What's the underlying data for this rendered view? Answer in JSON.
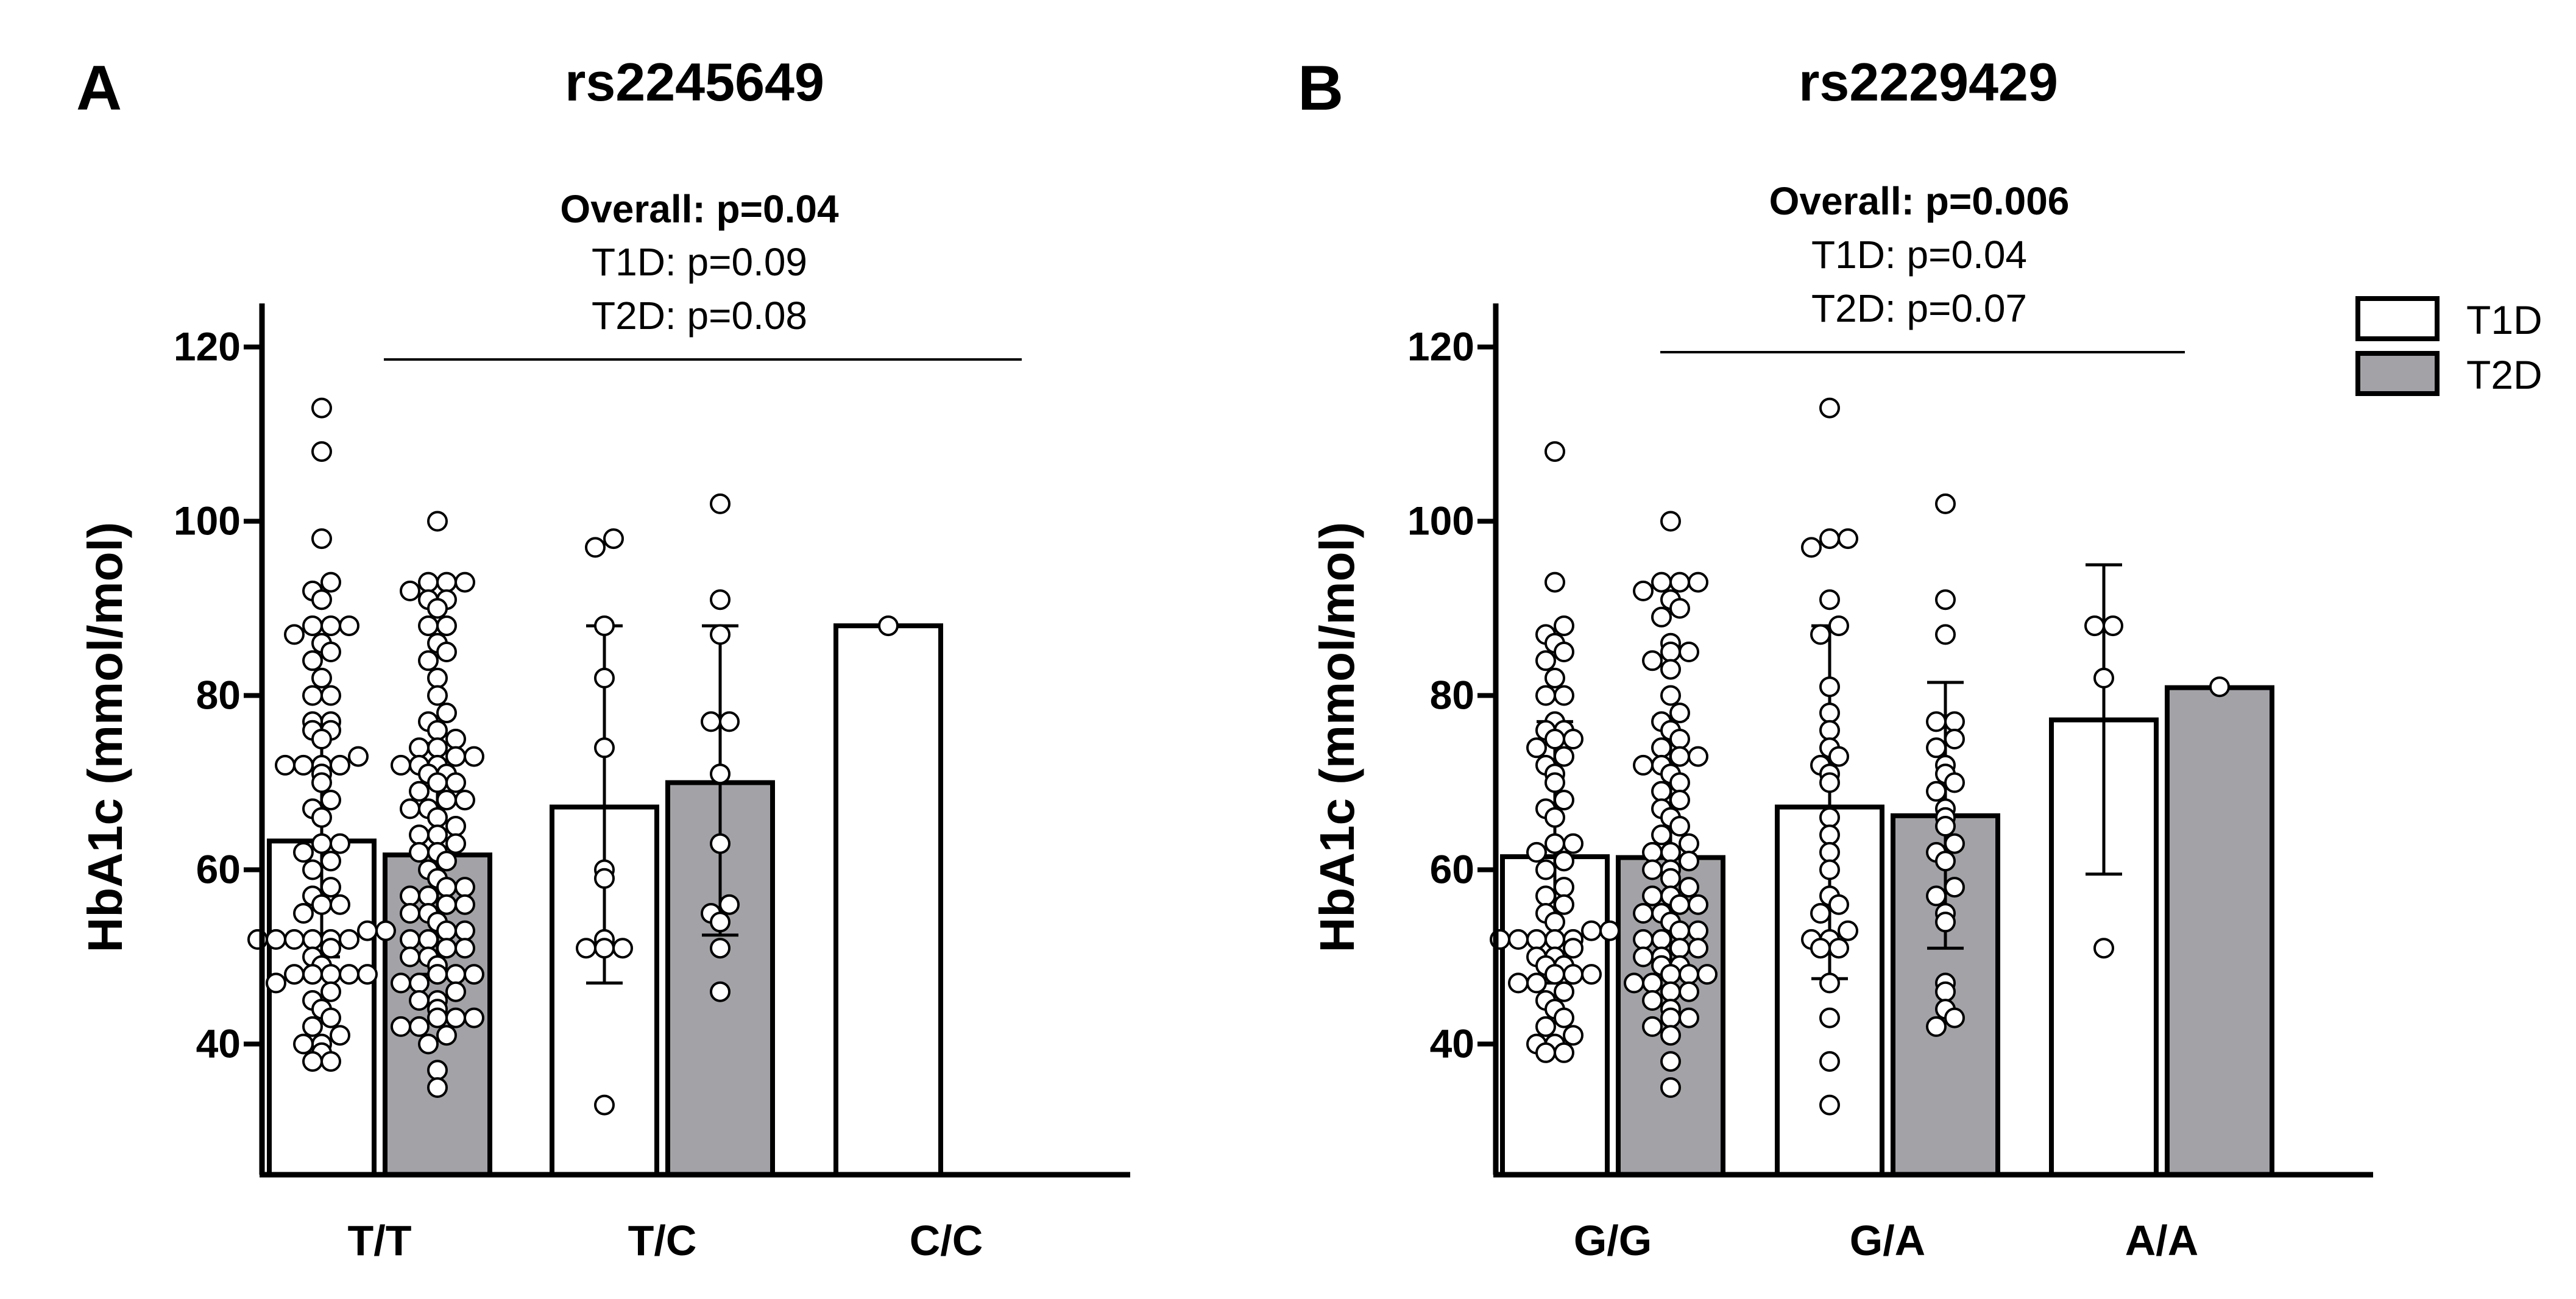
{
  "chart_data": [
    {
      "type": "bar",
      "panel": "A",
      "title": "rs2245649",
      "ylabel": "HbA1c (mmol/mol)",
      "xlabel": "",
      "ylim": [
        25,
        125
      ],
      "yticks": [
        40,
        60,
        80,
        100,
        120
      ],
      "categories": [
        "T/T",
        "T/C",
        "C/C"
      ],
      "annotation": {
        "overall": "Overall: p=0.04",
        "t1d": "T1D: p=0.09",
        "t2d": "T2D: p=0.08"
      },
      "bracket": {
        "from": "T/T",
        "to": "C/C"
      },
      "series": [
        {
          "name": "T1D",
          "fill": "#ffffff",
          "values": [
            63.3,
            67.2,
            88
          ],
          "error_low": [
            50.0,
            47.0,
            null
          ],
          "error_high": [
            76.5,
            88.0,
            null
          ],
          "points": [
            [
              38,
              38,
              39,
              40,
              40,
              41,
              42,
              43,
              44,
              45,
              46,
              47,
              48,
              48,
              48,
              48,
              48,
              49,
              50,
              51,
              52,
              52,
              52,
              52,
              52,
              52,
              53,
              53,
              55,
              56,
              56,
              57,
              58,
              60,
              61,
              62,
              63,
              63,
              66,
              67,
              68,
              70,
              71,
              72,
              72,
              72,
              72,
              73,
              75,
              76,
              76,
              77,
              77,
              80,
              80,
              82,
              84,
              85,
              86,
              87,
              88,
              88,
              88,
              91,
              92,
              93,
              98,
              108,
              113
            ],
            [
              33,
              51,
              51,
              51,
              52,
              59,
              60,
              74,
              82,
              88,
              97,
              98
            ],
            [
              88
            ]
          ]
        },
        {
          "name": "T2D",
          "fill": "#a3a3a7",
          "values": [
            61.7,
            70.0,
            null
          ],
          "error_low": [
            48.0,
            52.5,
            null
          ],
          "error_high": [
            74.5,
            88.0,
            null
          ],
          "points": [
            [
              35,
              37,
              40,
              41,
              42,
              42,
              43,
              43,
              43,
              44,
              45,
              45,
              46,
              47,
              47,
              48,
              48,
              48,
              49,
              50,
              50,
              51,
              51,
              52,
              52,
              53,
              53,
              54,
              55,
              55,
              56,
              56,
              57,
              57,
              58,
              58,
              59,
              60,
              61,
              62,
              62,
              63,
              64,
              64,
              65,
              66,
              67,
              67,
              68,
              68,
              69,
              70,
              70,
              71,
              71,
              72,
              72,
              72,
              73,
              73,
              74,
              74,
              75,
              76,
              77,
              78,
              80,
              82,
              84,
              85,
              86,
              88,
              88,
              90,
              91,
              91,
              92,
              93,
              93,
              93,
              100
            ],
            [
              46,
              51,
              54,
              55,
              56,
              63,
              71,
              77,
              77,
              87,
              91,
              102
            ],
            []
          ]
        }
      ]
    },
    {
      "type": "bar",
      "panel": "B",
      "title": "rs2229429",
      "ylabel": "HbA1c (mmol/mol)",
      "xlabel": "",
      "ylim": [
        25,
        125
      ],
      "yticks": [
        40,
        60,
        80,
        100,
        120
      ],
      "categories": [
        "G/G",
        "G/A",
        "A/A"
      ],
      "annotation": {
        "overall": "Overall: p=0.006",
        "t1d": "T1D: p=0.04",
        "t2d": "T2D: p=0.07"
      },
      "bracket": {
        "from": "G/G",
        "to": "A/A"
      },
      "series": [
        {
          "name": "T1D",
          "fill": "#ffffff",
          "values": [
            61.5,
            67.2,
            77.2
          ],
          "error_low": [
            47.0,
            47.5,
            59.5
          ],
          "error_high": [
            77.0,
            88.0,
            95.0
          ],
          "points": [
            [
              39,
              39,
              40,
              40,
              41,
              42,
              43,
              44,
              45,
              46,
              47,
              47,
              48,
              48,
              48,
              49,
              49,
              50,
              50,
              51,
              52,
              52,
              52,
              52,
              52,
              53,
              53,
              54,
              55,
              56,
              57,
              58,
              60,
              61,
              62,
              63,
              63,
              66,
              67,
              68,
              70,
              71,
              72,
              73,
              74,
              75,
              75,
              76,
              76,
              77,
              80,
              80,
              82,
              84,
              85,
              86,
              87,
              88,
              93,
              108
            ],
            [
              33,
              38,
              43,
              47,
              51,
              51,
              52,
              52,
              53,
              55,
              56,
              57,
              60,
              62,
              64,
              66,
              70,
              71,
              72,
              73,
              74,
              76,
              78,
              81,
              87,
              88,
              91,
              97,
              98,
              98,
              113
            ],
            [
              51,
              82,
              88,
              88
            ]
          ]
        },
        {
          "name": "T2D",
          "fill": "#a3a3a7",
          "values": [
            61.4,
            66.2,
            80.9
          ],
          "error_low": [
            48.0,
            51.0,
            null
          ],
          "error_high": [
            77.5,
            81.5,
            null
          ],
          "points": [
            [
              35,
              38,
              41,
              42,
              43,
              43,
              44,
              45,
              46,
              46,
              47,
              47,
              48,
              48,
              48,
              49,
              49,
              50,
              50,
              51,
              51,
              52,
              52,
              53,
              53,
              54,
              55,
              55,
              56,
              56,
              57,
              57,
              58,
              59,
              60,
              60,
              61,
              62,
              62,
              63,
              64,
              65,
              66,
              67,
              68,
              69,
              70,
              71,
              72,
              72,
              73,
              73,
              74,
              75,
              76,
              77,
              78,
              80,
              83,
              84,
              85,
              85,
              86,
              89,
              90,
              91,
              92,
              93,
              93,
              93,
              100
            ],
            [
              42,
              43,
              44,
              46,
              47,
              54,
              55,
              57,
              58,
              61,
              62,
              63,
              65,
              66,
              67,
              69,
              70,
              71,
              72,
              74,
              75,
              77,
              77,
              87,
              91,
              102
            ],
            [
              81
            ]
          ]
        }
      ]
    }
  ],
  "legend": {
    "items": [
      {
        "label": "T1D",
        "fill": "#ffffff"
      },
      {
        "label": "T2D",
        "fill": "#a3a3a7"
      }
    ]
  }
}
